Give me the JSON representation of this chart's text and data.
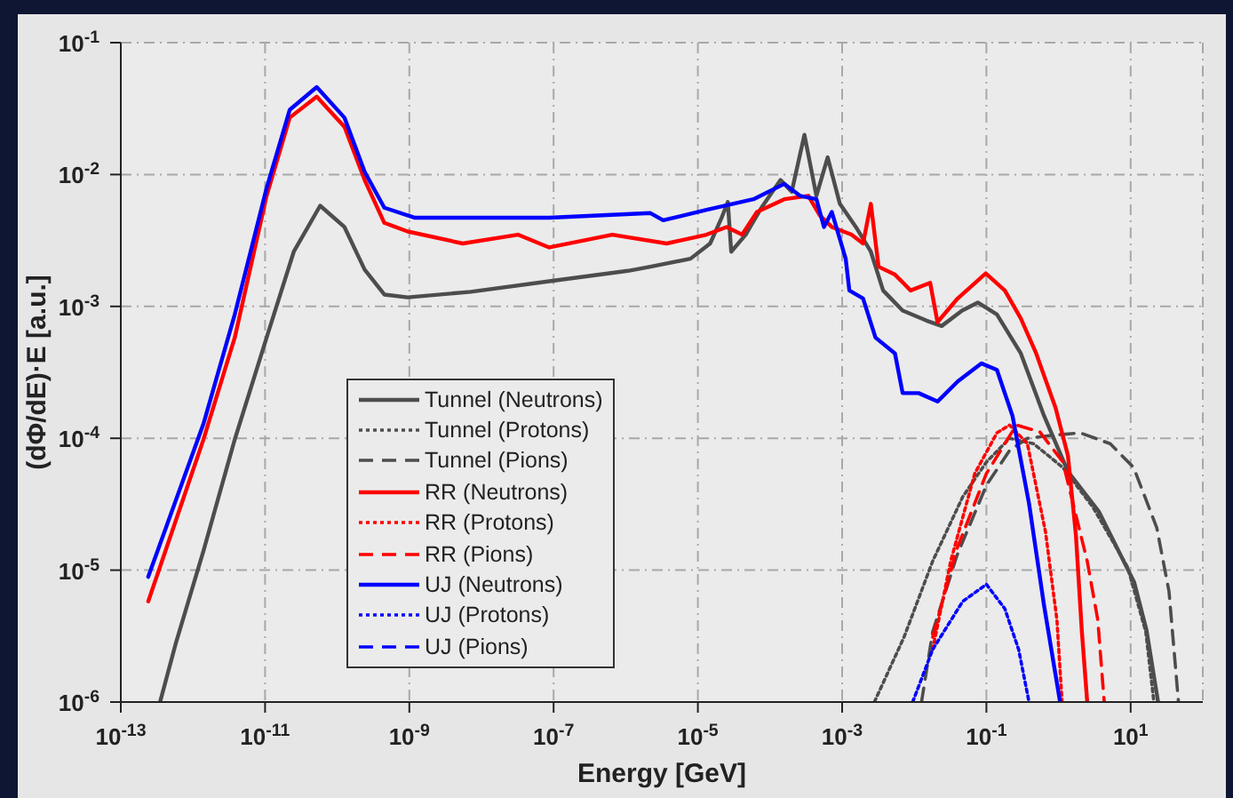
{
  "chart_data": {
    "type": "line",
    "xlabel": "Energy [GeV]",
    "ylabel": "(dΦ/dE)·E [a.u.]",
    "log": "xy",
    "grid": true,
    "legend": "bottom left",
    "xlim": [
      1e-13,
      100
    ],
    "ylim": [
      1e-06,
      0.1
    ],
    "xticks": [
      {
        "value": 1e-13,
        "label": "10$^{-13}$"
      },
      {
        "value": 1e-11,
        "label": "10$^{-11}$"
      },
      {
        "value": 1e-09,
        "label": "10$^{-9}$"
      },
      {
        "value": 1e-07,
        "label": "10$^{-7}$"
      },
      {
        "value": 1e-05,
        "label": "10$^{-5}$"
      },
      {
        "value": 0.001,
        "label": "10$^{-3}$"
      },
      {
        "value": 0.1,
        "label": "10$^{-1}$"
      },
      {
        "value": 10,
        "label": "10$^{1}$"
      }
    ],
    "yticks": [
      {
        "value": 1e-06,
        "label": "10$^{-6}$"
      },
      {
        "value": 1e-05,
        "label": "10$^{-5}$"
      },
      {
        "value": 0.0001,
        "label": "10$^{-4}$"
      },
      {
        "value": 0.001,
        "label": "10$^{-3}$"
      },
      {
        "value": 0.01,
        "label": "10$^{-2}$"
      },
      {
        "value": 0.1,
        "label": "10$^{-1}$"
      }
    ],
    "series": [
      {
        "name": "Tunnel (Neutrons)",
        "color": "#4d4d4d",
        "line_style": "solid",
        "x": [
          3.5e-13,
          5.8e-13,
          1.4e-12,
          3.8e-12,
          1.05e-11,
          2.5e-11,
          5.8e-11,
          1.26e-10,
          2.4e-10,
          4.5e-10,
          9.5e-10,
          7.1e-09,
          8.7e-08,
          1.07e-06,
          2.2e-06,
          7.9e-06,
          1.48e-05,
          2.1e-05,
          2.6e-05,
          2.9e-05,
          4.6e-05,
          7.6e-05,
          0.00014,
          0.0002,
          0.0003,
          0.00044,
          0.00063,
          0.00093,
          0.00155,
          0.0025,
          0.0037,
          0.0069,
          0.0148,
          0.024,
          0.046,
          0.076,
          0.14,
          0.3,
          0.63,
          1.35,
          3.6,
          6.0,
          11.2,
          16.6,
          24
        ],
        "values": [
          1e-06,
          2.8e-06,
          1.4e-05,
          9.8e-05,
          0.00058,
          0.0026,
          0.0058,
          0.004,
          0.0019,
          0.00123,
          0.00117,
          0.00129,
          0.00155,
          0.00186,
          0.002,
          0.0023,
          0.003,
          0.0046,
          0.0062,
          0.0026,
          0.0035,
          0.0056,
          0.0091,
          0.0074,
          0.02,
          0.0069,
          0.0135,
          0.006,
          0.004,
          0.0026,
          0.00132,
          0.00093,
          0.00078,
          0.00071,
          0.00093,
          0.00107,
          0.00087,
          0.00044,
          0.000148,
          5.6e-05,
          2.8e-05,
          1.6e-05,
          8.1e-06,
          3.5e-06,
          1e-06
        ]
      },
      {
        "name": "Tunnel (Protons)",
        "color": "#4d4d4d",
        "line_style": "dotted",
        "x": [
          0.0028,
          0.0072,
          0.018,
          0.047,
          0.1,
          0.21,
          0.45,
          1.15,
          3.0,
          9.1,
          16.2,
          21
        ],
        "values": [
          1e-06,
          3.1e-06,
          1.17e-05,
          3.6e-05,
          6.6e-05,
          0.0001,
          9.1e-05,
          6e-05,
          3e-05,
          1.05e-05,
          3.4e-06,
          1e-06
        ]
      },
      {
        "name": "Tunnel (Pions)",
        "color": "#4d4d4d",
        "line_style": "dashed",
        "x": [
          0.0126,
          0.018,
          0.039,
          0.1,
          0.21,
          0.37,
          0.79,
          2.0,
          5.2,
          11,
          23,
          34,
          46
        ],
        "values": [
          1e-06,
          3.4e-06,
          1.29e-05,
          4.4e-05,
          8.1e-05,
          0.0001,
          0.000105,
          0.00011,
          9.1e-05,
          6e-05,
          2.1e-05,
          6.9e-06,
          1e-06
        ]
      },
      {
        "name": "RR (Neutrons)",
        "color": "#ff0000",
        "line_style": "solid",
        "x": [
          2.4e-13,
          1.4e-12,
          3.8e-12,
          1.05e-11,
          2.2e-11,
          5.2e-11,
          1.26e-10,
          2.4e-10,
          4.5e-10,
          9.5e-10,
          5.5e-09,
          3.2e-08,
          8.7e-08,
          6.5e-07,
          3.7e-06,
          1.32e-05,
          2.5e-05,
          4.1e-05,
          6.6e-05,
          0.000158,
          0.00034,
          0.00049,
          0.00072,
          0.00135,
          0.00195,
          0.0025,
          0.0032,
          0.0054,
          0.0089,
          0.0166,
          0.021,
          0.04,
          0.098,
          0.18,
          0.3,
          0.49,
          0.91,
          1.35,
          1.74,
          2.1,
          2.5
        ],
        "values": [
          5.8e-06,
          9.8e-05,
          0.00058,
          0.0069,
          0.027,
          0.039,
          0.023,
          0.0091,
          0.0043,
          0.0037,
          0.003,
          0.0035,
          0.0028,
          0.0035,
          0.003,
          0.0035,
          0.004,
          0.0035,
          0.0052,
          0.0065,
          0.0069,
          0.0049,
          0.004,
          0.0035,
          0.003,
          0.006,
          0.002,
          0.00174,
          0.00132,
          0.00151,
          0.00076,
          0.00115,
          0.00178,
          0.00132,
          0.00081,
          0.00044,
          0.00017,
          7.4e-05,
          1.86e-05,
          3.5e-06,
          1e-06
        ]
      },
      {
        "name": "RR (Protons)",
        "color": "#ff0000",
        "line_style": "dotted",
        "x": [
          0.018,
          0.032,
          0.069,
          0.14,
          0.21,
          0.37,
          0.66,
          0.95,
          1.12
        ],
        "values": [
          2.5e-06,
          1.17e-05,
          5.4e-05,
          0.00011,
          0.000126,
          9.1e-05,
          1.95e-05,
          4.2e-06,
          1e-06
        ]
      },
      {
        "name": "RR (Pions)",
        "color": "#ff0000",
        "line_style": "dashed",
        "x": [
          0.018,
          0.039,
          0.1,
          0.26,
          0.55,
          1.15,
          2.5,
          3.5,
          4.3
        ],
        "values": [
          3.1e-06,
          1.45e-05,
          5.4e-05,
          0.000126,
          0.000112,
          6.6e-05,
          1.17e-05,
          4.2e-06,
          1e-06
        ]
      },
      {
        "name": "UJ (Neutrons)",
        "color": "#0000ff",
        "line_style": "solid",
        "x": [
          2.4e-13,
          1.4e-12,
          3.8e-12,
          1.05e-11,
          2.2e-11,
          5.2e-11,
          1.26e-10,
          2.4e-10,
          4.5e-10,
          1.2e-09,
          8.7e-08,
          2.2e-06,
          3.3e-06,
          1.32e-05,
          5.9e-05,
          0.000158,
          0.00026,
          0.00044,
          0.00056,
          0.00072,
          0.00112,
          0.00126,
          0.00195,
          0.0029,
          0.0054,
          0.0069,
          0.0115,
          0.021,
          0.04,
          0.085,
          0.14,
          0.23,
          0.39,
          0.63,
          1.05
        ],
        "values": [
          8.9e-06,
          0.000129,
          0.00087,
          0.0079,
          0.031,
          0.046,
          0.027,
          0.0105,
          0.0056,
          0.0047,
          0.0047,
          0.0051,
          0.0045,
          0.0054,
          0.0065,
          0.0085,
          0.0069,
          0.0065,
          0.004,
          0.0052,
          0.0023,
          0.00132,
          0.00115,
          0.00058,
          0.00044,
          0.00022,
          0.00022,
          0.00019,
          0.00027,
          0.00037,
          0.00033,
          0.000148,
          3.2e-05,
          5.4e-06,
          1e-06
        ]
      },
      {
        "name": "UJ (Protons)",
        "color": "#0000ff",
        "line_style": "dotted",
        "x": [
          0.0095,
          0.018,
          0.047,
          0.1,
          0.18,
          0.28,
          0.39
        ],
        "values": [
          1e-06,
          2.5e-06,
          5.8e-06,
          7.8e-06,
          5.1e-06,
          2.5e-06,
          1e-06
        ]
      },
      {
        "name": "UJ (Pions)",
        "color": "#0000ff",
        "line_style": "dashed"
      }
    ]
  }
}
